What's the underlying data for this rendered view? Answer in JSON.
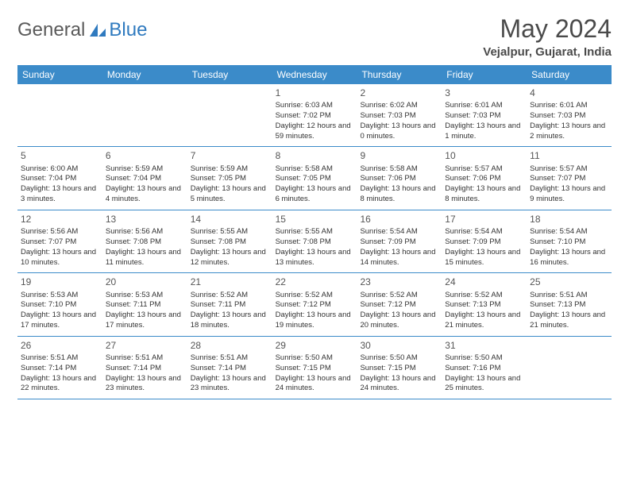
{
  "brand": {
    "part1": "General",
    "part2": "Blue"
  },
  "title": "May 2024",
  "location": "Vejalpur, Gujarat, India",
  "colors": {
    "header_bg": "#3b8bc9",
    "header_fg": "#ffffff",
    "border": "#3b8bc9",
    "logo_gray": "#5a5a5a",
    "logo_blue": "#2f7abf",
    "text": "#333333"
  },
  "day_names": [
    "Sunday",
    "Monday",
    "Tuesday",
    "Wednesday",
    "Thursday",
    "Friday",
    "Saturday"
  ],
  "weeks": [
    [
      {
        "n": "",
        "sr": "",
        "ss": "",
        "dl": ""
      },
      {
        "n": "",
        "sr": "",
        "ss": "",
        "dl": ""
      },
      {
        "n": "",
        "sr": "",
        "ss": "",
        "dl": ""
      },
      {
        "n": "1",
        "sr": "Sunrise: 6:03 AM",
        "ss": "Sunset: 7:02 PM",
        "dl": "Daylight: 12 hours and 59 minutes."
      },
      {
        "n": "2",
        "sr": "Sunrise: 6:02 AM",
        "ss": "Sunset: 7:03 PM",
        "dl": "Daylight: 13 hours and 0 minutes."
      },
      {
        "n": "3",
        "sr": "Sunrise: 6:01 AM",
        "ss": "Sunset: 7:03 PM",
        "dl": "Daylight: 13 hours and 1 minute."
      },
      {
        "n": "4",
        "sr": "Sunrise: 6:01 AM",
        "ss": "Sunset: 7:03 PM",
        "dl": "Daylight: 13 hours and 2 minutes."
      }
    ],
    [
      {
        "n": "5",
        "sr": "Sunrise: 6:00 AM",
        "ss": "Sunset: 7:04 PM",
        "dl": "Daylight: 13 hours and 3 minutes."
      },
      {
        "n": "6",
        "sr": "Sunrise: 5:59 AM",
        "ss": "Sunset: 7:04 PM",
        "dl": "Daylight: 13 hours and 4 minutes."
      },
      {
        "n": "7",
        "sr": "Sunrise: 5:59 AM",
        "ss": "Sunset: 7:05 PM",
        "dl": "Daylight: 13 hours and 5 minutes."
      },
      {
        "n": "8",
        "sr": "Sunrise: 5:58 AM",
        "ss": "Sunset: 7:05 PM",
        "dl": "Daylight: 13 hours and 6 minutes."
      },
      {
        "n": "9",
        "sr": "Sunrise: 5:58 AM",
        "ss": "Sunset: 7:06 PM",
        "dl": "Daylight: 13 hours and 8 minutes."
      },
      {
        "n": "10",
        "sr": "Sunrise: 5:57 AM",
        "ss": "Sunset: 7:06 PM",
        "dl": "Daylight: 13 hours and 8 minutes."
      },
      {
        "n": "11",
        "sr": "Sunrise: 5:57 AM",
        "ss": "Sunset: 7:07 PM",
        "dl": "Daylight: 13 hours and 9 minutes."
      }
    ],
    [
      {
        "n": "12",
        "sr": "Sunrise: 5:56 AM",
        "ss": "Sunset: 7:07 PM",
        "dl": "Daylight: 13 hours and 10 minutes."
      },
      {
        "n": "13",
        "sr": "Sunrise: 5:56 AM",
        "ss": "Sunset: 7:08 PM",
        "dl": "Daylight: 13 hours and 11 minutes."
      },
      {
        "n": "14",
        "sr": "Sunrise: 5:55 AM",
        "ss": "Sunset: 7:08 PM",
        "dl": "Daylight: 13 hours and 12 minutes."
      },
      {
        "n": "15",
        "sr": "Sunrise: 5:55 AM",
        "ss": "Sunset: 7:08 PM",
        "dl": "Daylight: 13 hours and 13 minutes."
      },
      {
        "n": "16",
        "sr": "Sunrise: 5:54 AM",
        "ss": "Sunset: 7:09 PM",
        "dl": "Daylight: 13 hours and 14 minutes."
      },
      {
        "n": "17",
        "sr": "Sunrise: 5:54 AM",
        "ss": "Sunset: 7:09 PM",
        "dl": "Daylight: 13 hours and 15 minutes."
      },
      {
        "n": "18",
        "sr": "Sunrise: 5:54 AM",
        "ss": "Sunset: 7:10 PM",
        "dl": "Daylight: 13 hours and 16 minutes."
      }
    ],
    [
      {
        "n": "19",
        "sr": "Sunrise: 5:53 AM",
        "ss": "Sunset: 7:10 PM",
        "dl": "Daylight: 13 hours and 17 minutes."
      },
      {
        "n": "20",
        "sr": "Sunrise: 5:53 AM",
        "ss": "Sunset: 7:11 PM",
        "dl": "Daylight: 13 hours and 17 minutes."
      },
      {
        "n": "21",
        "sr": "Sunrise: 5:52 AM",
        "ss": "Sunset: 7:11 PM",
        "dl": "Daylight: 13 hours and 18 minutes."
      },
      {
        "n": "22",
        "sr": "Sunrise: 5:52 AM",
        "ss": "Sunset: 7:12 PM",
        "dl": "Daylight: 13 hours and 19 minutes."
      },
      {
        "n": "23",
        "sr": "Sunrise: 5:52 AM",
        "ss": "Sunset: 7:12 PM",
        "dl": "Daylight: 13 hours and 20 minutes."
      },
      {
        "n": "24",
        "sr": "Sunrise: 5:52 AM",
        "ss": "Sunset: 7:13 PM",
        "dl": "Daylight: 13 hours and 21 minutes."
      },
      {
        "n": "25",
        "sr": "Sunrise: 5:51 AM",
        "ss": "Sunset: 7:13 PM",
        "dl": "Daylight: 13 hours and 21 minutes."
      }
    ],
    [
      {
        "n": "26",
        "sr": "Sunrise: 5:51 AM",
        "ss": "Sunset: 7:14 PM",
        "dl": "Daylight: 13 hours and 22 minutes."
      },
      {
        "n": "27",
        "sr": "Sunrise: 5:51 AM",
        "ss": "Sunset: 7:14 PM",
        "dl": "Daylight: 13 hours and 23 minutes."
      },
      {
        "n": "28",
        "sr": "Sunrise: 5:51 AM",
        "ss": "Sunset: 7:14 PM",
        "dl": "Daylight: 13 hours and 23 minutes."
      },
      {
        "n": "29",
        "sr": "Sunrise: 5:50 AM",
        "ss": "Sunset: 7:15 PM",
        "dl": "Daylight: 13 hours and 24 minutes."
      },
      {
        "n": "30",
        "sr": "Sunrise: 5:50 AM",
        "ss": "Sunset: 7:15 PM",
        "dl": "Daylight: 13 hours and 24 minutes."
      },
      {
        "n": "31",
        "sr": "Sunrise: 5:50 AM",
        "ss": "Sunset: 7:16 PM",
        "dl": "Daylight: 13 hours and 25 minutes."
      },
      {
        "n": "",
        "sr": "",
        "ss": "",
        "dl": ""
      }
    ]
  ]
}
